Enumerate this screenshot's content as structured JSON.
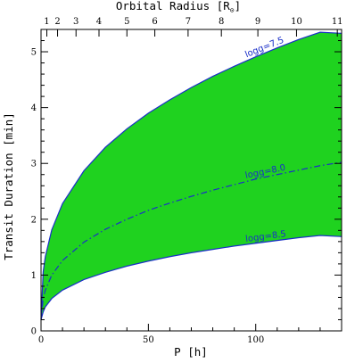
{
  "chart_data": {
    "type": "area",
    "xlabel": "P [h]",
    "ylabel": "Transit Duration [min]",
    "top_axis_label": "Orbital Radius [R",
    "top_axis_label_sub": "⊙",
    "top_axis_label_close": "]",
    "xlim": [
      0,
      140
    ],
    "ylim": [
      0,
      5.4
    ],
    "x_ticks": [
      0,
      50,
      100
    ],
    "y_ticks": [
      0,
      1,
      2,
      3,
      4,
      5
    ],
    "top_ticks": [
      1,
      2,
      3,
      4,
      5,
      6,
      7,
      8,
      9,
      10,
      11
    ],
    "top_tick_positions_h": [
      2.7,
      7.7,
      16.3,
      27,
      40,
      53,
      68.5,
      84,
      101,
      119,
      138
    ],
    "fill_color": "#1fd21f",
    "line_color": "#1a2fc8",
    "grid": false,
    "series": [
      {
        "name": "logg=7.5",
        "style": "solid",
        "label_at_x": 105,
        "x": [
          0,
          1,
          2,
          5,
          10,
          20,
          30,
          40,
          50,
          60,
          70,
          80,
          90,
          100,
          110,
          120,
          130,
          140
        ],
        "y": [
          0.2,
          1.06,
          1.33,
          1.81,
          2.28,
          2.87,
          3.29,
          3.62,
          3.9,
          4.14,
          4.36,
          4.56,
          4.74,
          4.91,
          5.07,
          5.22,
          5.35,
          5.33
        ]
      },
      {
        "name": "logg=8.0",
        "style": "dash-dot",
        "label_at_x": 105,
        "x": [
          0,
          1,
          2,
          5,
          10,
          20,
          30,
          40,
          50,
          60,
          70,
          80,
          90,
          100,
          110,
          120,
          130,
          140
        ],
        "y": [
          0.2,
          0.58,
          0.73,
          1.0,
          1.26,
          1.59,
          1.82,
          2.0,
          2.16,
          2.29,
          2.41,
          2.52,
          2.62,
          2.72,
          2.8,
          2.88,
          2.96,
          3.02
        ]
      },
      {
        "name": "logg=8.5",
        "style": "solid",
        "label_at_x": 105,
        "x": [
          0,
          1,
          2,
          5,
          10,
          20,
          30,
          40,
          50,
          60,
          70,
          80,
          90,
          100,
          110,
          120,
          130,
          140
        ],
        "y": [
          0.2,
          0.34,
          0.43,
          0.58,
          0.73,
          0.92,
          1.05,
          1.16,
          1.25,
          1.33,
          1.4,
          1.46,
          1.52,
          1.57,
          1.62,
          1.67,
          1.71,
          1.69
        ]
      }
    ]
  }
}
